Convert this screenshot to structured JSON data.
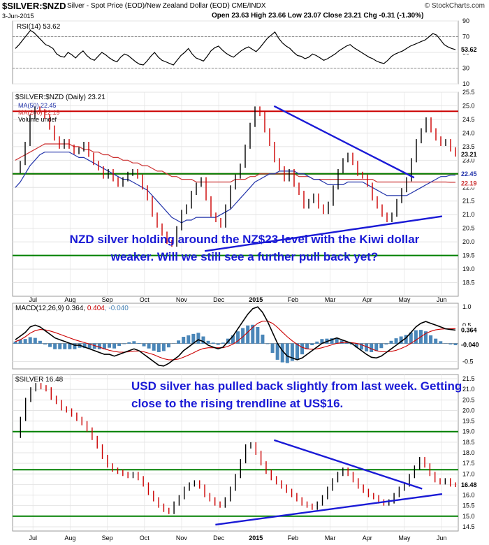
{
  "header": {
    "symbol": "$SILVER:$NZD",
    "description": "Silver - Spot Price (EOD)/New Zealand Dollar (EOD)  CME/INDX",
    "date": "3-Jun-2015",
    "ohlc": "Open 23.63  High 23.66  Low 23.07  Close 23.21  Chg -0.31 (-1.30%)",
    "copyright": "© StockCharts.com"
  },
  "annotations": {
    "nzd": "NZD silver holding around the NZ$23 level with the Kiwi dollar weaker. Will we still see a further pull back yet?",
    "usd": "USD silver has pulled back slightly from last week. Getting close to the rising trendline at US$16."
  },
  "colors": {
    "up": "#000000",
    "down": "#cc0000",
    "ma50": "#2233aa",
    "ma200": "#cc3333",
    "support": "#008000",
    "resistance": "#cc0000",
    "trend": "#1a1ad6",
    "macd": "#000000",
    "signal": "#cc0000",
    "hist": "#4a86b8"
  },
  "chart_data": [
    {
      "type": "line",
      "name": "rsi",
      "label": "RSI(14) 53.62",
      "current": "53.62",
      "ylim": [
        10,
        90
      ],
      "y_ticks": [
        "90",
        "70",
        "50",
        "30",
        "10"
      ],
      "levels": [
        70,
        30
      ],
      "values": [
        55,
        60,
        66,
        72,
        78,
        75,
        70,
        65,
        60,
        58,
        55,
        48,
        45,
        44,
        50,
        47,
        43,
        48,
        52,
        46,
        42,
        40,
        45,
        50,
        47,
        43,
        40,
        38,
        44,
        48,
        46,
        42,
        38,
        35,
        34,
        39,
        45,
        50,
        44,
        40,
        38,
        36,
        34,
        40,
        46,
        50,
        55,
        48,
        43,
        41,
        39,
        45,
        52,
        56,
        58,
        53,
        49,
        46,
        44,
        48,
        52,
        55,
        57,
        54,
        51,
        56,
        62,
        68,
        72,
        76,
        68,
        62,
        58,
        55,
        50,
        46,
        45,
        42,
        44,
        48,
        46,
        43,
        40,
        42,
        45,
        48,
        52,
        55,
        58,
        60,
        56,
        53,
        50,
        47,
        44,
        42,
        39,
        37,
        36,
        40,
        45,
        48,
        50,
        52,
        55,
        58,
        60,
        62,
        64,
        66,
        70,
        74,
        72,
        66,
        60,
        57,
        55,
        53.62
      ]
    },
    {
      "type": "line",
      "name": "silver_nzd",
      "legend": [
        "MA(50) 22.45",
        "MA(200) 22.19",
        "Volume undef"
      ],
      "title": "$SILVER:$NZD (Daily) 23.21",
      "ylim": [
        18,
        25.5
      ],
      "y_ticks": [
        "25.5",
        "25.0",
        "24.5",
        "24.0",
        "23.5",
        "23.0",
        "22.5",
        "22.0",
        "21.5",
        "21.0",
        "20.5",
        "20.0",
        "19.5",
        "19.0",
        "18.5"
      ],
      "price_tags": [
        "23.21",
        "22.45",
        "22.19"
      ],
      "x_labels": [
        "Jul",
        "Aug",
        "Sep",
        "Oct",
        "Nov",
        "Dec",
        "2015",
        "Feb",
        "Mar",
        "Apr",
        "May",
        "Jun"
      ],
      "close": [
        22.6,
        22.9,
        23.6,
        24.6,
        24.9,
        24.8,
        24.6,
        24.2,
        23.8,
        23.5,
        23.7,
        23.5,
        23.3,
        23.4,
        23.6,
        23.2,
        22.9,
        22.7,
        22.4,
        22.6,
        22.3,
        22.1,
        22.3,
        22.5,
        22.6,
        22.4,
        22.0,
        21.6,
        21.0,
        20.6,
        20.3,
        20.0,
        19.9,
        20.5,
        21.1,
        21.3,
        21.8,
        22.1,
        22.3,
        21.6,
        21.0,
        20.8,
        20.6,
        21.3,
        22.0,
        22.4,
        22.8,
        23.5,
        24.3,
        24.9,
        24.7,
        24.1,
        23.6,
        23.0,
        22.7,
        22.3,
        22.6,
        22.1,
        21.8,
        21.3,
        21.5,
        21.7,
        21.3,
        21.1,
        21.4,
        22.0,
        22.6,
        23.0,
        23.2,
        22.9,
        22.5,
        22.4,
        22.1,
        21.6,
        21.3,
        21.0,
        20.8,
        21.0,
        21.5,
        21.9,
        22.3,
        23.0,
        23.7,
        24.1,
        24.5,
        24.1,
        23.8,
        23.6,
        23.7,
        23.4,
        23.21
      ],
      "ma50": [
        22.0,
        22.2,
        22.5,
        22.8,
        23.0,
        23.2,
        23.3,
        23.3,
        23.3,
        23.3,
        23.3,
        23.3,
        23.2,
        23.1,
        23.1,
        23.0,
        22.9,
        22.8,
        22.7,
        22.6,
        22.5,
        22.4,
        22.3,
        22.3,
        22.2,
        22.1,
        22.0,
        21.9,
        21.7,
        21.5,
        21.3,
        21.1,
        20.9,
        20.8,
        20.7,
        20.8,
        20.8,
        20.9,
        20.9,
        20.9,
        20.9,
        20.9,
        21.0,
        21.1,
        21.2,
        21.4,
        21.6,
        21.8,
        22.0,
        22.2,
        22.3,
        22.4,
        22.5,
        22.5,
        22.6,
        22.6,
        22.6,
        22.6,
        22.5,
        22.5,
        22.4,
        22.3,
        22.3,
        22.2,
        22.1,
        22.1,
        22.1,
        22.1,
        22.2,
        22.2,
        22.2,
        22.2,
        22.1,
        22.0,
        21.9,
        21.8,
        21.7,
        21.7,
        21.7,
        21.7,
        21.7,
        21.8,
        21.9,
        22.0,
        22.1,
        22.2,
        22.3,
        22.4,
        22.4,
        22.45,
        22.45
      ],
      "ma200": [
        23.0,
        23.1,
        23.2,
        23.3,
        23.4,
        23.5,
        23.6,
        23.6,
        23.6,
        23.6,
        23.6,
        23.6,
        23.5,
        23.5,
        23.4,
        23.4,
        23.3,
        23.3,
        23.2,
        23.2,
        23.1,
        23.1,
        23.0,
        23.0,
        22.9,
        22.9,
        22.8,
        22.8,
        22.7,
        22.6,
        22.6,
        22.5,
        22.4,
        22.4,
        22.3,
        22.3,
        22.3,
        22.2,
        22.2,
        22.2,
        22.2,
        22.2,
        22.2,
        22.2,
        22.2,
        22.3,
        22.3,
        22.3,
        22.4,
        22.4,
        22.5,
        22.5,
        22.5,
        22.5,
        22.5,
        22.5,
        22.5,
        22.5,
        22.4,
        22.4,
        22.4,
        22.3,
        22.3,
        22.3,
        22.3,
        22.3,
        22.3,
        22.3,
        22.3,
        22.3,
        22.3,
        22.3,
        22.3,
        22.3,
        22.2,
        22.2,
        22.2,
        22.2,
        22.2,
        22.2,
        22.2,
        22.2,
        22.2,
        22.2,
        22.2,
        22.2,
        22.2,
        22.2,
        22.2,
        22.19,
        22.19
      ],
      "support_levels": [
        22.5,
        19.5
      ],
      "resistance_levels": [
        24.8,
        22.5
      ],
      "trendlines": [
        [
          [
            194,
            24.99
          ],
          [
            299,
            22.36
          ]
        ],
        [
          [
            142,
            19.66
          ],
          [
            320,
            20.94
          ]
        ]
      ]
    },
    {
      "type": "line",
      "name": "macd",
      "label": "MACD(12,26,9)",
      "values_text": [
        "0.364",
        "0.404",
        "-0.040"
      ],
      "ylim": [
        -0.7,
        1.1
      ],
      "y_ticks": [
        "1.0",
        "0.5",
        "-0.5"
      ],
      "price_tags": [
        "0.364",
        "-0.040"
      ],
      "macd": [
        0.1,
        0.2,
        0.3,
        0.45,
        0.5,
        0.45,
        0.35,
        0.25,
        0.15,
        0.1,
        0.05,
        0.0,
        -0.05,
        -0.05,
        -0.1,
        -0.15,
        -0.2,
        -0.25,
        -0.3,
        -0.3,
        -0.35,
        -0.3,
        -0.25,
        -0.2,
        -0.15,
        -0.2,
        -0.3,
        -0.4,
        -0.5,
        -0.6,
        -0.62,
        -0.55,
        -0.45,
        -0.35,
        -0.2,
        -0.1,
        0.0,
        0.1,
        0.05,
        -0.05,
        -0.1,
        -0.15,
        -0.1,
        0.05,
        0.2,
        0.4,
        0.6,
        0.8,
        0.95,
        1.0,
        0.85,
        0.6,
        0.3,
        0.0,
        -0.2,
        -0.35,
        -0.4,
        -0.45,
        -0.4,
        -0.3,
        -0.2,
        -0.1,
        0.0,
        0.05,
        0.1,
        0.15,
        0.1,
        0.05,
        0.0,
        -0.1,
        -0.2,
        -0.3,
        -0.38,
        -0.4,
        -0.35,
        -0.25,
        -0.15,
        -0.05,
        0.05,
        0.15,
        0.3,
        0.45,
        0.55,
        0.6,
        0.55,
        0.5,
        0.45,
        0.4,
        0.38,
        0.364
      ],
      "signal": [
        0.05,
        0.1,
        0.18,
        0.28,
        0.35,
        0.38,
        0.37,
        0.34,
        0.3,
        0.25,
        0.2,
        0.15,
        0.1,
        0.06,
        0.02,
        -0.02,
        -0.06,
        -0.1,
        -0.15,
        -0.19,
        -0.22,
        -0.24,
        -0.24,
        -0.23,
        -0.21,
        -0.21,
        -0.23,
        -0.27,
        -0.31,
        -0.37,
        -0.42,
        -0.45,
        -0.45,
        -0.43,
        -0.38,
        -0.32,
        -0.26,
        -0.19,
        -0.14,
        -0.12,
        -0.12,
        -0.12,
        -0.12,
        -0.08,
        -0.02,
        0.07,
        0.18,
        0.31,
        0.44,
        0.55,
        0.61,
        0.61,
        0.55,
        0.44,
        0.31,
        0.18,
        0.07,
        -0.03,
        -0.11,
        -0.15,
        -0.16,
        -0.15,
        -0.12,
        -0.08,
        -0.04,
        0.0,
        0.02,
        0.03,
        0.02,
        0.0,
        -0.04,
        -0.09,
        -0.15,
        -0.2,
        -0.23,
        -0.23,
        -0.22,
        -0.19,
        -0.14,
        -0.08,
        0.0,
        0.09,
        0.18,
        0.27,
        0.33,
        0.37,
        0.39,
        0.4,
        0.4,
        0.404
      ]
    },
    {
      "type": "line",
      "name": "silver_usd",
      "title": "$SILVER 16.48",
      "current": "16.48",
      "ylim": [
        14.3,
        21.7
      ],
      "y_ticks": [
        "21.5",
        "21.0",
        "20.5",
        "20.0",
        "19.5",
        "19.0",
        "18.5",
        "18.0",
        "17.5",
        "17.0",
        "16.5",
        "16.0",
        "15.5",
        "15.0",
        "14.5"
      ],
      "x_labels": [
        "Jul",
        "Aug",
        "Sep",
        "Oct",
        "Nov",
        "Dec",
        "2015",
        "Feb",
        "Mar",
        "Apr",
        "May",
        "Jun"
      ],
      "close": [
        18.8,
        19.6,
        20.5,
        21.0,
        21.2,
        21.1,
        21.0,
        20.6,
        20.4,
        20.1,
        20.0,
        19.8,
        19.6,
        19.4,
        19.1,
        18.7,
        18.3,
        17.8,
        17.4,
        17.2,
        17.1,
        17.0,
        16.9,
        17.0,
        16.8,
        16.5,
        16.1,
        15.8,
        15.5,
        15.3,
        15.2,
        15.6,
        15.9,
        16.3,
        16.5,
        16.6,
        16.4,
        16.0,
        15.8,
        15.6,
        15.5,
        15.8,
        16.3,
        16.9,
        17.6,
        18.3,
        18.4,
        18.0,
        17.5,
        17.1,
        16.8,
        16.6,
        16.4,
        16.2,
        16.0,
        15.8,
        15.6,
        15.5,
        15.4,
        15.6,
        15.9,
        16.3,
        16.7,
        17.0,
        17.2,
        17.0,
        16.7,
        16.4,
        16.2,
        16.0,
        15.9,
        15.7,
        15.6,
        15.7,
        16.0,
        16.3,
        16.5,
        16.9,
        17.3,
        17.7,
        17.4,
        17.0,
        16.7,
        16.6,
        16.7,
        16.5,
        16.48
      ],
      "support_levels": [
        17.2,
        19.0,
        15.0
      ],
      "trendlines": [
        [
          [
            194,
            18.6
          ],
          [
            305,
            16.3
          ]
        ],
        [
          [
            150,
            14.6
          ],
          [
            320,
            16.05
          ]
        ]
      ]
    }
  ]
}
